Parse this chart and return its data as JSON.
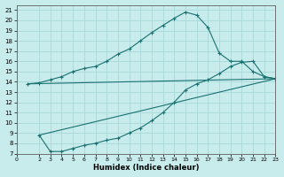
{
  "xlabel": "Humidex (Indice chaleur)",
  "bg_color": "#c8ecec",
  "grid_color": "#a8d8d8",
  "line_color": "#1a7070",
  "xmin": 0,
  "xmax": 23,
  "ymin": 7,
  "ymax": 21.5,
  "xticks": [
    0,
    2,
    3,
    4,
    5,
    6,
    7,
    8,
    9,
    10,
    11,
    12,
    13,
    14,
    15,
    16,
    17,
    18,
    19,
    20,
    21,
    22,
    23
  ],
  "yticks": [
    7,
    8,
    9,
    10,
    11,
    12,
    13,
    14,
    15,
    16,
    17,
    18,
    19,
    20,
    21
  ],
  "curve1_x": [
    1,
    2,
    3,
    4,
    5,
    6,
    7,
    8,
    9,
    10,
    11,
    12,
    13,
    14,
    15,
    16,
    17,
    18,
    19,
    20,
    21,
    22,
    23
  ],
  "curve1_y": [
    13.8,
    13.9,
    14.2,
    14.5,
    15.0,
    15.3,
    15.5,
    16.0,
    16.7,
    17.2,
    18.0,
    18.8,
    19.5,
    20.2,
    20.8,
    20.5,
    19.3,
    16.8,
    16.0,
    16.0,
    15.0,
    14.5,
    14.3
  ],
  "curve2_x": [
    2,
    3,
    4,
    5,
    6,
    7,
    8,
    9,
    10,
    11,
    12,
    13,
    14,
    15,
    16,
    17,
    18,
    19,
    20,
    21,
    22,
    23
  ],
  "curve2_y": [
    8.8,
    7.2,
    7.2,
    7.5,
    7.8,
    8.0,
    8.3,
    8.5,
    9.0,
    9.5,
    10.2,
    11.0,
    12.0,
    13.2,
    13.8,
    14.2,
    14.8,
    15.5,
    15.9,
    16.0,
    14.5,
    14.3
  ],
  "curve3_x": [
    1,
    23
  ],
  "curve3_y": [
    13.8,
    14.3
  ],
  "curve4_x": [
    2,
    23
  ],
  "curve4_y": [
    8.8,
    14.3
  ]
}
